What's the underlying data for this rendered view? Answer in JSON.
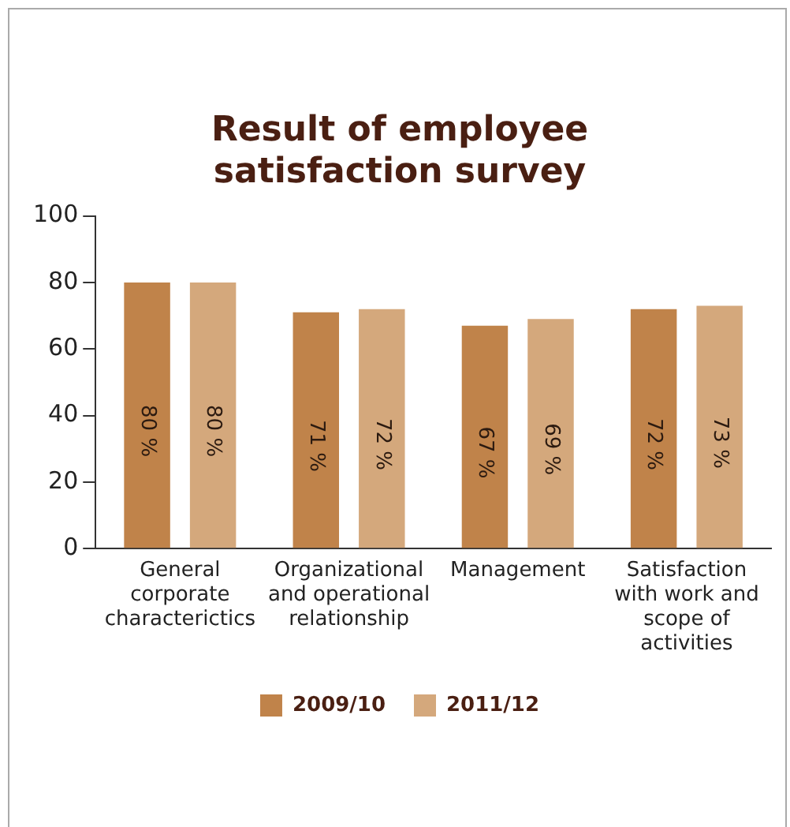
{
  "chart_data": {
    "type": "bar",
    "title": "Result of employee satisfaction survey",
    "categories": [
      "General corporate characterictics",
      "Organizational and operational relationship",
      "Management",
      "Satisfaction with work and scope of activities"
    ],
    "series": [
      {
        "name": "2009/10",
        "color": "#c0834a",
        "values": [
          80,
          71,
          67,
          72
        ],
        "value_labels": [
          "80 %",
          "71 %",
          "67 %",
          "72 %"
        ]
      },
      {
        "name": "2011/12",
        "color": "#d4a87c",
        "values": [
          80,
          72,
          69,
          73
        ],
        "value_labels": [
          "80 %",
          "72 %",
          "69 %",
          "73 %"
        ]
      }
    ],
    "ylim": [
      0,
      100
    ],
    "yticks": [
      0,
      20,
      40,
      60,
      80,
      100
    ],
    "grid": false,
    "legend": "bottom"
  }
}
